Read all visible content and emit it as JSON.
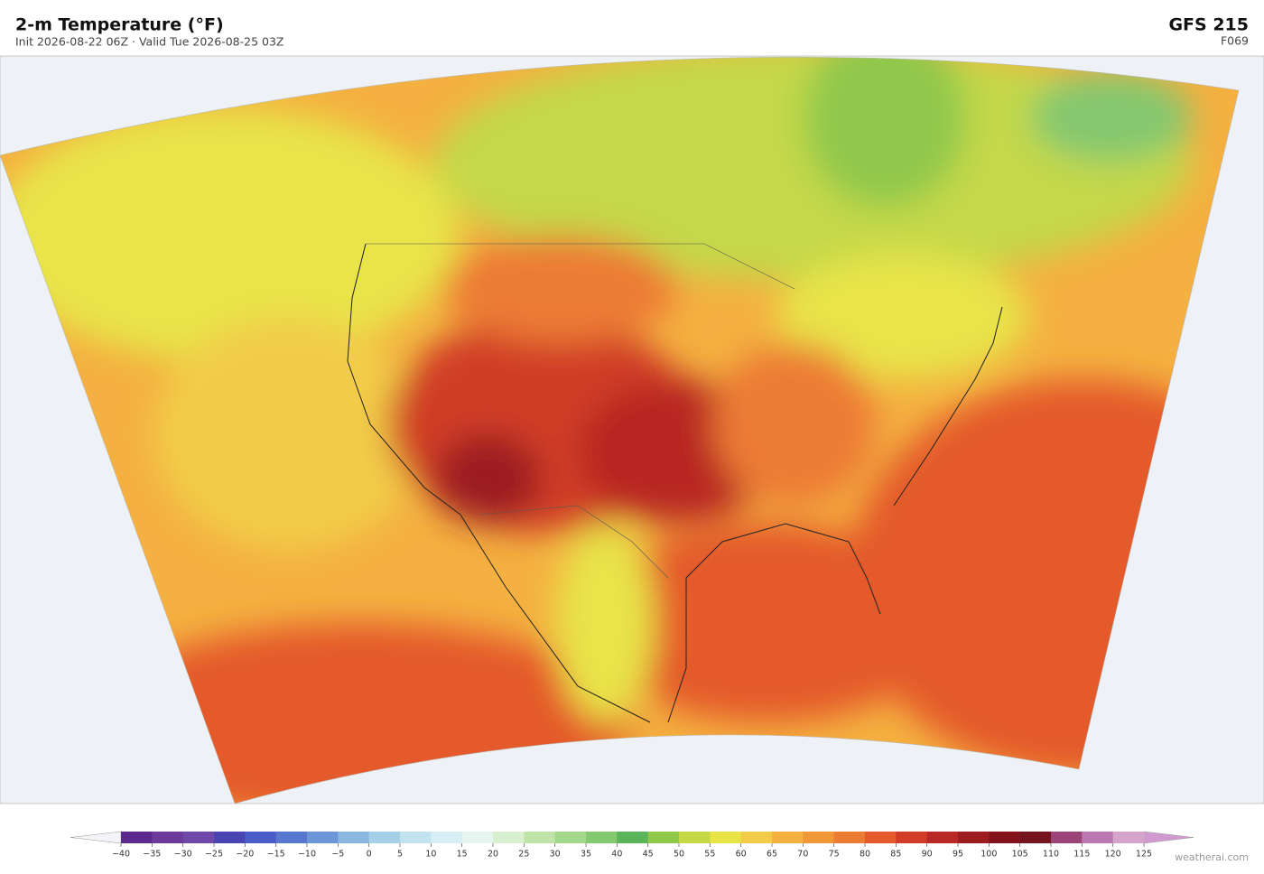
{
  "header": {
    "title": "2-m Temperature  (°F)",
    "subtitle": "Init 2026-08-22 06Z   ·   Valid Tue 2026-08-25 03Z",
    "model": "GFS  215",
    "forecast_hour": "F069"
  },
  "colorbar": {
    "ticks": [
      {
        "value": -40,
        "label": "−40"
      },
      {
        "value": -35,
        "label": "−35"
      },
      {
        "value": -30,
        "label": "−30"
      },
      {
        "value": -25,
        "label": "−25"
      },
      {
        "value": -20,
        "label": "−20"
      },
      {
        "value": -15,
        "label": "−15"
      },
      {
        "value": -10,
        "label": "−10"
      },
      {
        "value": -5,
        "label": "−5"
      },
      0,
      5,
      10,
      15,
      20,
      25,
      30,
      35,
      40,
      45,
      50,
      55,
      60,
      65,
      70,
      75,
      80,
      85,
      90,
      95,
      100,
      105,
      110,
      115,
      120,
      125
    ],
    "colors": [
      "#5b2a8c",
      "#6b3a9a",
      "#7049a8",
      "#4a44b0",
      "#4b5cc8",
      "#5878d0",
      "#6d96d8",
      "#8ab6e0",
      "#a6cfe8",
      "#c2e2f0",
      "#d6eef4",
      "#e6f4f0",
      "#d8efd0",
      "#c0e4a8",
      "#a4d88c",
      "#84c870",
      "#5ab45a",
      "#90c84c",
      "#c4d848",
      "#e8e448",
      "#f2cc48",
      "#f4b040",
      "#f09838",
      "#ec7c34",
      "#e45a2c",
      "#d03c28",
      "#b82824",
      "#9c1c20",
      "#84141c",
      "#74141c",
      "#9a4478",
      "#bc78b0",
      "#d4a4cc"
    ],
    "under_color": "#f4f4f8",
    "over_color": "#d09ad0"
  },
  "footer": {
    "credit": "weatherai.com"
  }
}
